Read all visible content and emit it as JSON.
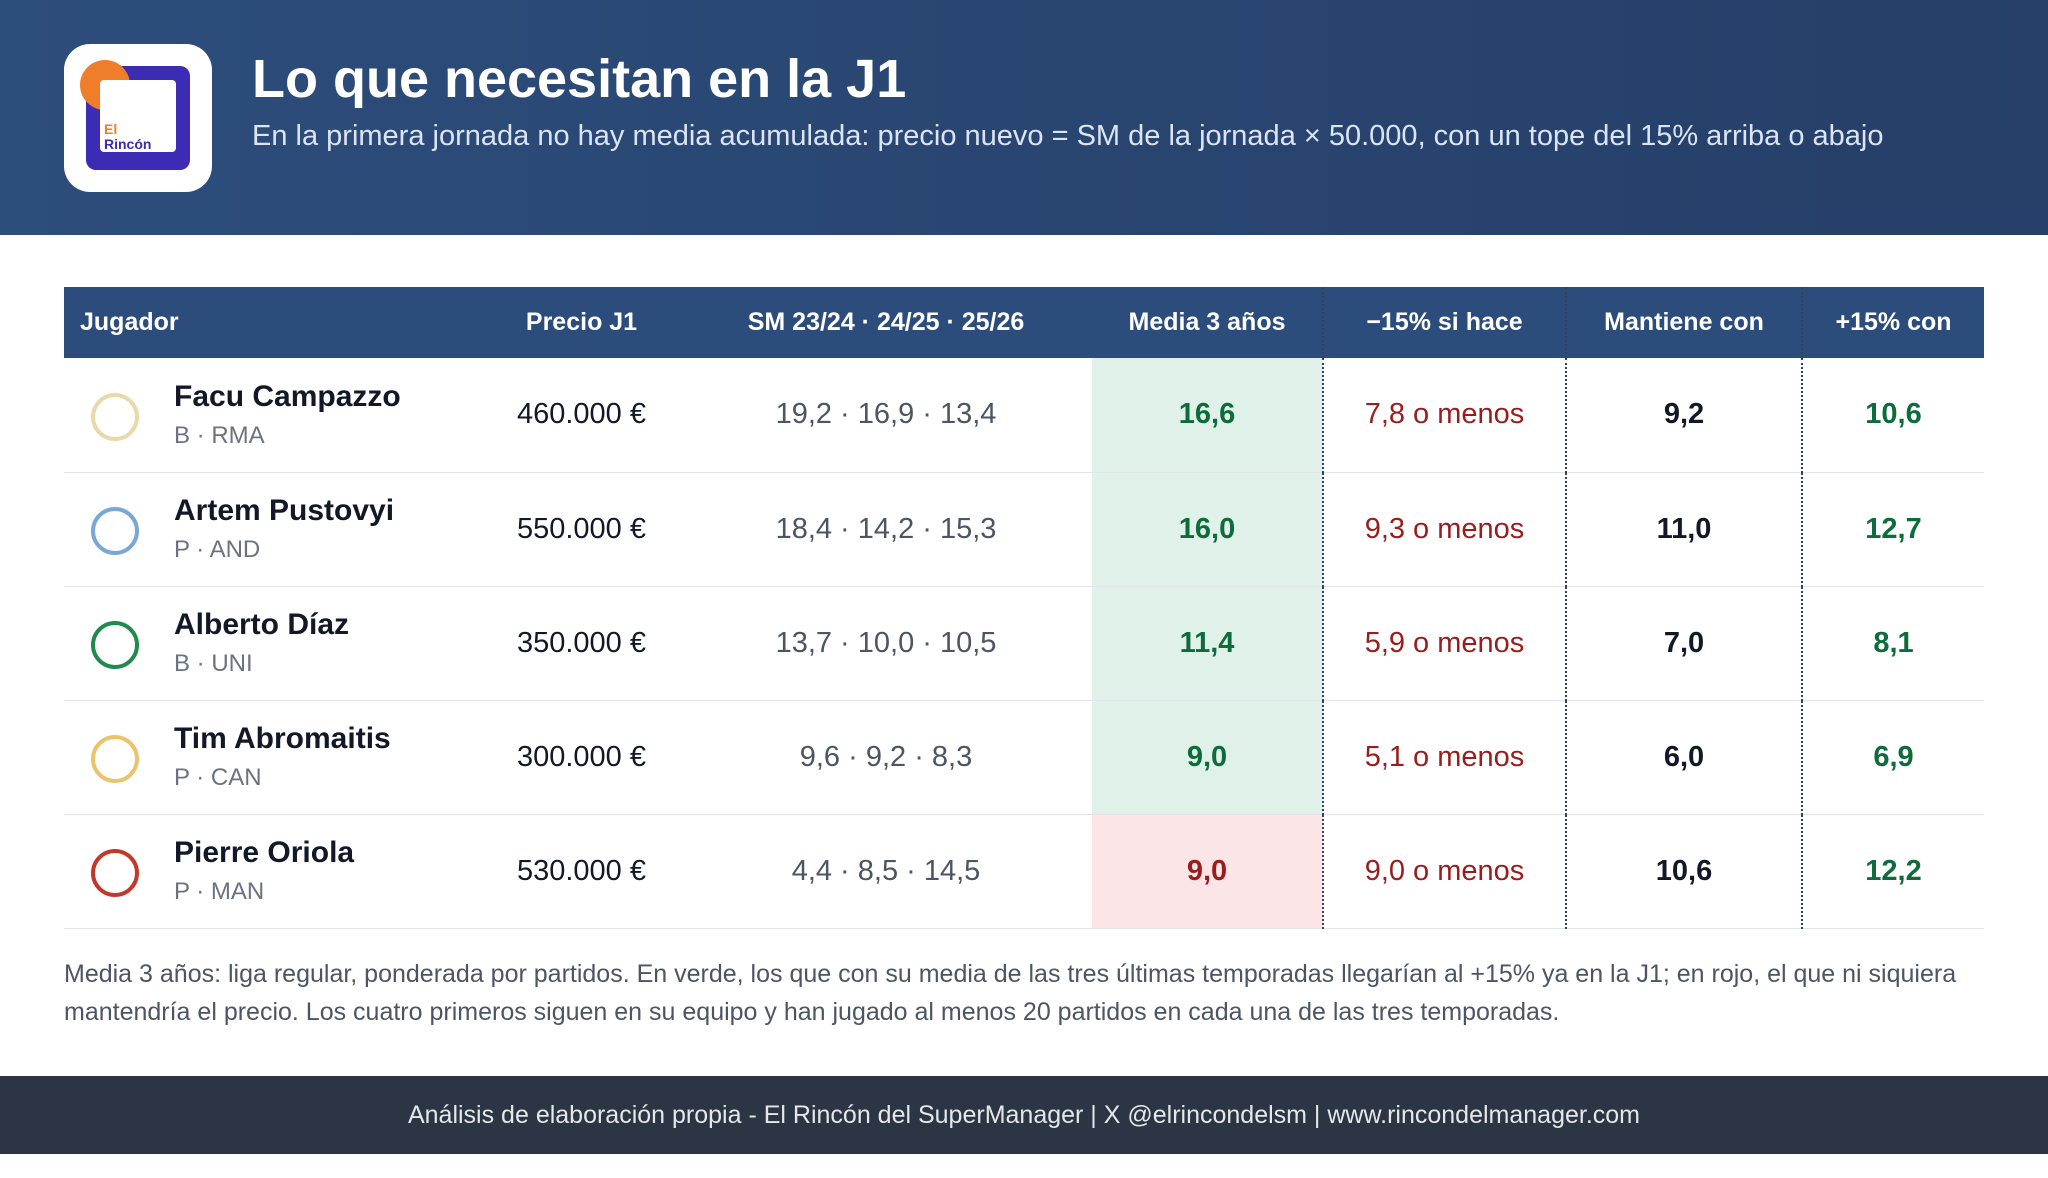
{
  "header": {
    "logo": [
      "El",
      "Rincón"
    ],
    "title": "Lo que necesitan en la J1",
    "subtitle": "En la primera jornada no hay media acumulada: precio nuevo = SM de la jornada × 50.000, con un tope del 15% arriba o abajo"
  },
  "table": {
    "columns": [
      "Jugador",
      "Precio J1",
      "SM 23/24 · 24/25 · 25/26",
      "Media 3 años",
      "−15% si hace",
      "Mantiene con",
      "+15% con"
    ],
    "rows": [
      {
        "name": "Facu Campazzo",
        "meta": "B · RMA",
        "price": "460.000 €",
        "sm": "19,2 · 16,9 · 13,4",
        "media": "16,6",
        "minus": "7,8 o menos",
        "keep": "9,2",
        "plus": "10,6",
        "media_bg": "#dff1e8",
        "media_color": "#0d6b3c"
      },
      {
        "name": "Artem Pustovyi",
        "meta": "P · AND",
        "price": "550.000 €",
        "sm": "18,4 · 14,2 · 15,3",
        "media": "16,0",
        "minus": "9,3 o menos",
        "keep": "11,0",
        "plus": "12,7",
        "media_bg": "#dff1e8",
        "media_color": "#0d6b3c"
      },
      {
        "name": "Alberto Díaz",
        "meta": "B · UNI",
        "price": "350.000 €",
        "sm": "13,7 · 10,0 · 10,5",
        "media": "11,4",
        "minus": "5,9 o menos",
        "keep": "7,0",
        "plus": "8,1",
        "media_bg": "#dff1e8",
        "media_color": "#0d6b3c"
      },
      {
        "name": "Tim Abromaitis",
        "meta": "P · CAN",
        "price": "300.000 €",
        "sm": "9,6 · 9,2 · 8,3",
        "media": "9,0",
        "minus": "5,1 o menos",
        "keep": "6,0",
        "plus": "6,9",
        "media_bg": "#dff1e8",
        "media_color": "#0d6b3c"
      },
      {
        "name": "Pierre Oriola",
        "meta": "P · MAN",
        "price": "530.000 €",
        "sm": "4,4 · 8,5 · 14,5",
        "media": "9,0",
        "minus": "9,0 o menos",
        "keep": "10,6",
        "plus": "12,2",
        "media_bg": "#fbe5e6",
        "media_color": "#9b1c1c"
      }
    ]
  },
  "note": "Media 3 años: liga regular, ponderada por partidos. En verde, los que con su media de las tres últimas temporadas llegarían al +15% ya en la J1; en rojo, el que ni siquiera mantendría el precio. Los cuatro primeros siguen en su equipo y han jugado al menos 20 partidos en cada una de las tres temporadas.",
  "footer": "Análisis de elaboración propia - El Rincón del SuperManager | X @elrincondelsm | www.rincondelmanager.com"
}
